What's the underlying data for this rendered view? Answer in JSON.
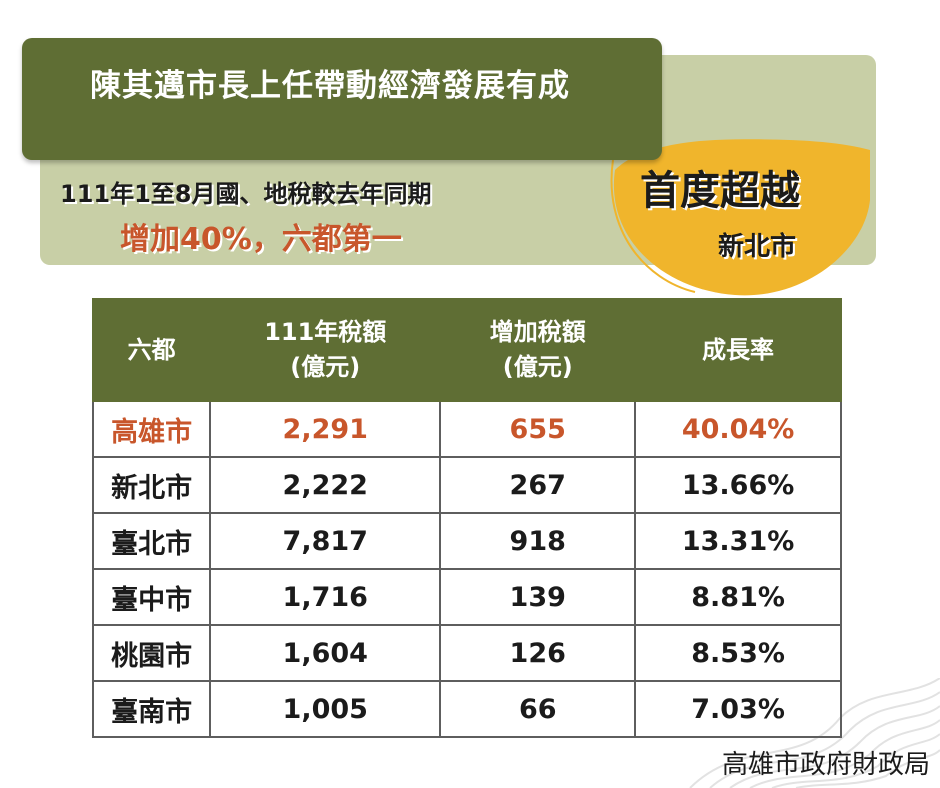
{
  "header": {
    "title": "陳其邁市長上任帶動經濟發展有成",
    "subtitle": "111年1至8月國、地稅較去年同期",
    "highlight": "增加40%，六都第一"
  },
  "badge": {
    "main": "首度超越",
    "sub": "新北市"
  },
  "table": {
    "headers": [
      {
        "line1": "六都",
        "line2": ""
      },
      {
        "line1": "111年稅額",
        "line2": "(億元)"
      },
      {
        "line1": "增加稅額",
        "line2": "(億元)"
      },
      {
        "line1": "成長率",
        "line2": ""
      }
    ],
    "rows": [
      {
        "city": "高雄市",
        "tax": "2,291",
        "increase": "655",
        "rate": "40.04%"
      },
      {
        "city": "新北市",
        "tax": "2,222",
        "increase": "267",
        "rate": "13.66%"
      },
      {
        "city": "臺北市",
        "tax": "7,817",
        "increase": "918",
        "rate": "13.31%"
      },
      {
        "city": "臺中市",
        "tax": "1,716",
        "increase": "139",
        "rate": "8.81%"
      },
      {
        "city": "桃園市",
        "tax": "1,604",
        "increase": "126",
        "rate": "8.53%"
      },
      {
        "city": "臺南市",
        "tax": "1,005",
        "increase": "66",
        "rate": "7.03%"
      }
    ]
  },
  "source": "高雄市政府財政局",
  "colors": {
    "olive": "#5f6e34",
    "sage": "#c8cfa6",
    "accent_orange": "#c8562b",
    "badge_yellow": "#f0b52c"
  }
}
